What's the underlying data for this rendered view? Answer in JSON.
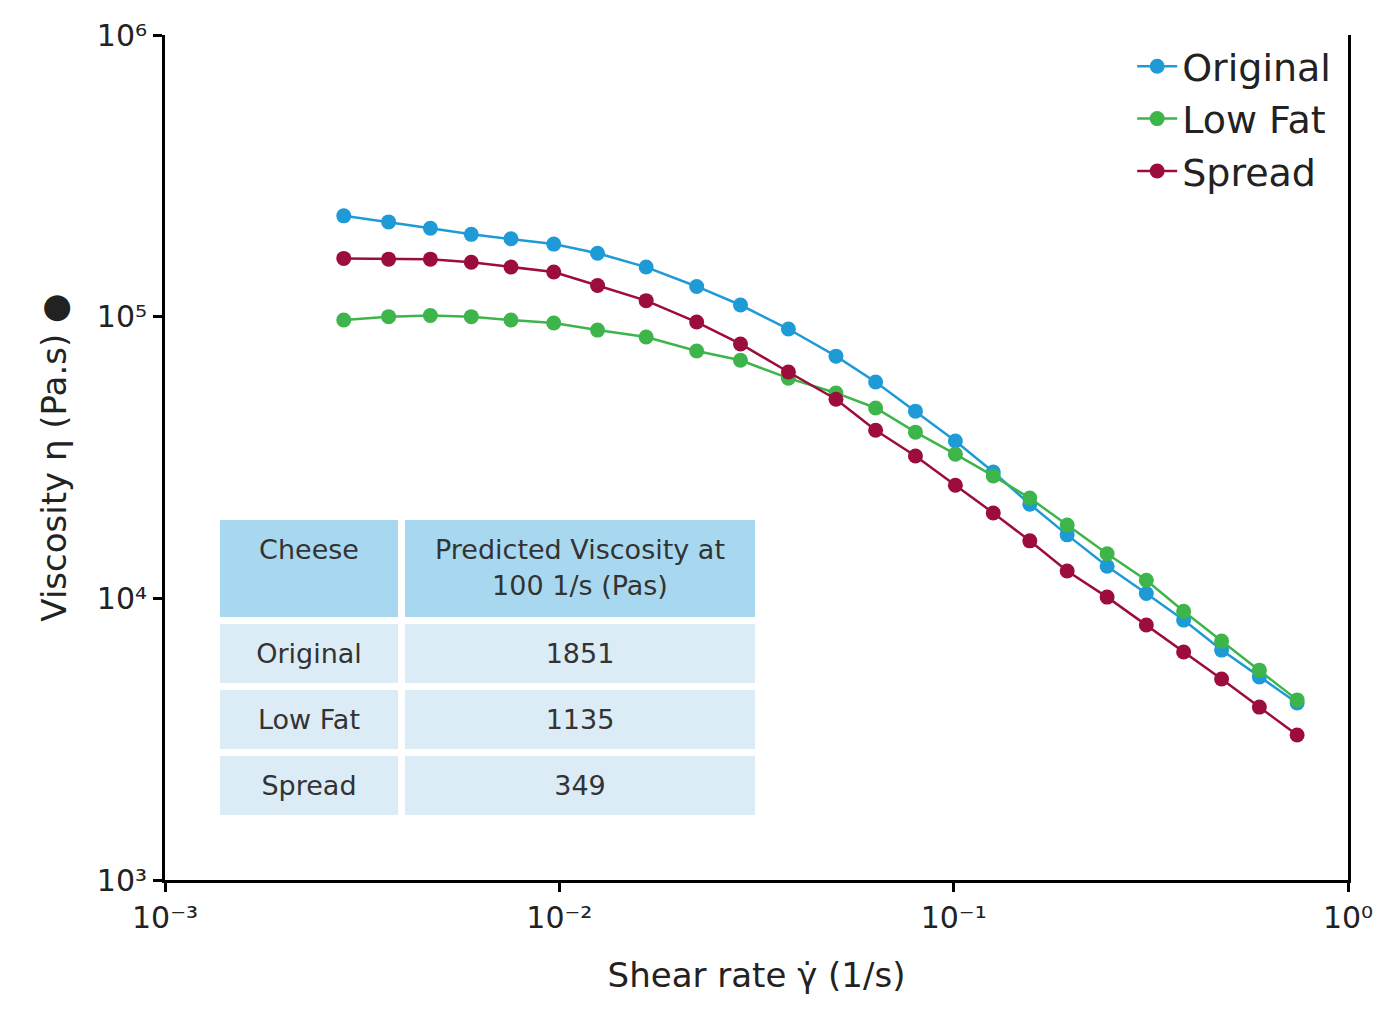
{
  "chart_data": {
    "type": "line",
    "x_label": "Shear rate γ̇ (1/s)",
    "y_label": "Viscosity η (Pa.s) ●",
    "log": true,
    "grid": false,
    "legend": "top right",
    "marker": "circle",
    "line_style": "solid",
    "xlim": [
      0.001,
      1
    ],
    "ylim": [
      1000,
      1000000
    ],
    "xticks": [
      {
        "value": 0.001,
        "label": "10⁻³"
      },
      {
        "value": 0.01,
        "label": "10⁻²"
      },
      {
        "value": 0.1,
        "label": "10⁻¹"
      },
      {
        "value": 1,
        "label": "10⁰"
      }
    ],
    "yticks": [
      {
        "value": 1000,
        "label": "10³"
      },
      {
        "value": 10000,
        "label": "10⁴"
      },
      {
        "value": 100000,
        "label": "10⁵"
      },
      {
        "value": 1000000,
        "label": "10⁶"
      }
    ],
    "x": [
      0.00284,
      0.00369,
      0.00471,
      0.00598,
      0.00754,
      0.00968,
      0.0125,
      0.0166,
      0.0223,
      0.0288,
      0.0381,
      0.0503,
      0.0634,
      0.08,
      0.101,
      0.126,
      0.156,
      0.194,
      0.245,
      0.308,
      0.383,
      0.478,
      0.596,
      0.743
    ],
    "series": [
      {
        "name": "Original",
        "color": "#1e9bd7",
        "values": [
          228000,
          217000,
          206000,
          196000,
          189000,
          181000,
          168000,
          150000,
          128000,
          110000,
          90400,
          72400,
          58600,
          46200,
          36200,
          28100,
          21600,
          16800,
          13000,
          10400,
          8370,
          6550,
          5260,
          4250
        ]
      },
      {
        "name": "Low Fat",
        "color": "#3db54a",
        "values": [
          97300,
          100000,
          101000,
          100000,
          97300,
          94900,
          89600,
          84700,
          75500,
          70000,
          60500,
          53600,
          47400,
          38900,
          32500,
          27200,
          22700,
          18200,
          14400,
          11600,
          9000,
          7050,
          5560,
          4360
        ]
      },
      {
        "name": "Spread",
        "color": "#9c0d3c",
        "values": [
          161000,
          160000,
          160000,
          156000,
          150000,
          144000,
          129000,
          114000,
          95700,
          80000,
          63600,
          50900,
          39500,
          32000,
          25200,
          20100,
          16000,
          12500,
          10100,
          8040,
          6450,
          5170,
          4110,
          3270
        ]
      }
    ]
  },
  "table": {
    "header": [
      "Cheese",
      "Predicted Viscosity at 100 1/s (Pas)"
    ],
    "rows": [
      [
        "Original",
        "1851"
      ],
      [
        "Low Fat",
        "1135"
      ],
      [
        "Spread",
        "349"
      ]
    ]
  }
}
